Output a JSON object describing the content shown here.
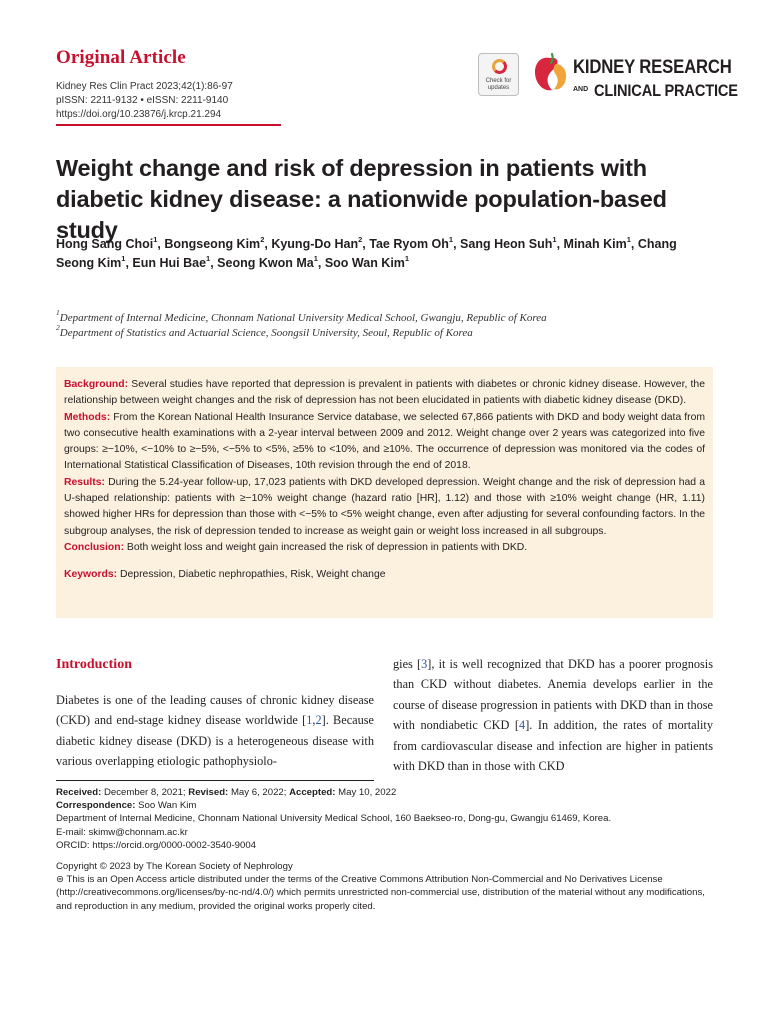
{
  "header": {
    "article_type": "Original Article",
    "citation_line": "Kidney Res Clin Pract 2023;42(1):86-97",
    "issn_line": "pISSN: 2211-9132 • eISSN: 2211-9140",
    "doi_line": "https://doi.org/10.23876/j.krcp.21.294",
    "crossmark_text": "Check for updates",
    "journal_logo_line1": "KIDNEY RESEARCH",
    "journal_logo_and": "AND",
    "journal_logo_line2": "CLINICAL PRACTICE",
    "colors": {
      "accent": "#c8102e",
      "abstract_bg": "#fcf1df",
      "link": "#2b5aa6"
    }
  },
  "title": "Weight change and risk of depression in patients with diabetic kidney disease: a nationwide population-based study",
  "authors": [
    {
      "name": "Hong Sang Choi",
      "aff": "1"
    },
    {
      "name": "Bongseong Kim",
      "aff": "2"
    },
    {
      "name": "Kyung-Do Han",
      "aff": "2"
    },
    {
      "name": "Tae Ryom Oh",
      "aff": "1"
    },
    {
      "name": "Sang Heon Suh",
      "aff": "1"
    },
    {
      "name": "Minah Kim",
      "aff": "1"
    },
    {
      "name": "Chang Seong Kim",
      "aff": "1"
    },
    {
      "name": "Eun Hui Bae",
      "aff": "1"
    },
    {
      "name": "Seong Kwon Ma",
      "aff": "1"
    },
    {
      "name": "Soo Wan Kim",
      "aff": "1"
    }
  ],
  "affiliations": [
    {
      "num": "1",
      "text": "Department of Internal Medicine, Chonnam National University Medical School, Gwangju, Republic of Korea"
    },
    {
      "num": "2",
      "text": "Department of Statistics and Actuarial Science, Soongsil University, Seoul, Republic of Korea"
    }
  ],
  "abstract": {
    "background_label": "Background:",
    "background": "Several studies have reported that depression is prevalent in patients with diabetes or chronic kidney disease. However, the relationship between weight changes and the risk of depression has not been elucidated in patients with diabetic kidney disease (DKD).",
    "methods_label": "Methods:",
    "methods": "From the Korean National Health Insurance Service database, we selected 67,866 patients with DKD and body weight data from two consecutive health examinations with a 2-year interval between 2009 and 2012. Weight change over 2 years was categorized into five groups: ≥−10%, <−10% to ≥−5%, <−5% to <5%, ≥5% to <10%, and ≥10%. The occurrence of depression was monitored via the codes of International Statistical Classification of Diseases, 10th revision through the end of 2018.",
    "results_label": "Results:",
    "results": "During the 5.24-year follow-up, 17,023 patients with DKD developed depression. Weight change and the risk of depression had a U-shaped relationship: patients with ≥−10% weight change (hazard ratio [HR], 1.12) and those with ≥10% weight change (HR, 1.11) showed higher HRs for depression than those with <−5% to <5% weight change, even after adjusting for several confounding factors. In the subgroup analyses, the risk of depression tended to increase as weight gain or weight loss increased in all subgroups.",
    "conclusion_label": "Conclusion:",
    "conclusion": "Both weight loss and weight gain increased the risk of depression in patients with DKD.",
    "keywords_label": "Keywords:",
    "keywords": "Depression, Diabetic nephropathies, Risk, Weight change"
  },
  "body": {
    "intro_heading": "Introduction",
    "left_p1": "Diabetes is one of the leading causes of chronic kidney disease (CKD) and end-stage kidney disease worldwide [",
    "left_ref1": "1",
    "left_sep1": ",",
    "left_ref2": "2",
    "left_p2": "]. Because diabetic kidney disease (DKD) is a heterogeneous disease with various overlapping etiologic pathophysiolo-",
    "right_p1": "gies [",
    "right_ref3": "3",
    "right_p2": "], it is well recognized that DKD has a poorer prognosis than CKD without diabetes. Anemia develops earlier in the course of disease progression in patients with DKD than in those with nondiabetic CKD [",
    "right_ref4": "4",
    "right_p3": "]. In addition, the rates of mortality from cardiovascular disease and infection are higher in patients with DKD than in those with CKD"
  },
  "footnotes": {
    "received_label": "Received:",
    "received": "December 8, 2021;",
    "revised_label": "Revised:",
    "revised": "May 6, 2022;",
    "accepted_label": "Accepted:",
    "accepted": "May 10, 2022",
    "correspondence_label": "Correspondence:",
    "correspondence_name": "Soo Wan Kim",
    "address": "Department of Internal Medicine, Chonnam National University Medical School, 160 Baekseo-ro, Dong-gu, Gwangju 61469, Korea.",
    "email": "E-mail: skimw@chonnam.ac.kr",
    "orcid": "ORCID: https://orcid.org/0000-0002-3540-9004",
    "copyright": "Copyright © 2023 by The Korean Society of Nephrology",
    "license": "This is an Open Access article distributed under the terms of the Creative Commons Attribution Non-Commercial and No Derivatives License (http://creativecommons.org/licenses/by-nc-nd/4.0/) which permits unrestricted non-commercial use, distribution of the material without any modifications, and reproduction in any medium, provided the original works properly cited."
  }
}
